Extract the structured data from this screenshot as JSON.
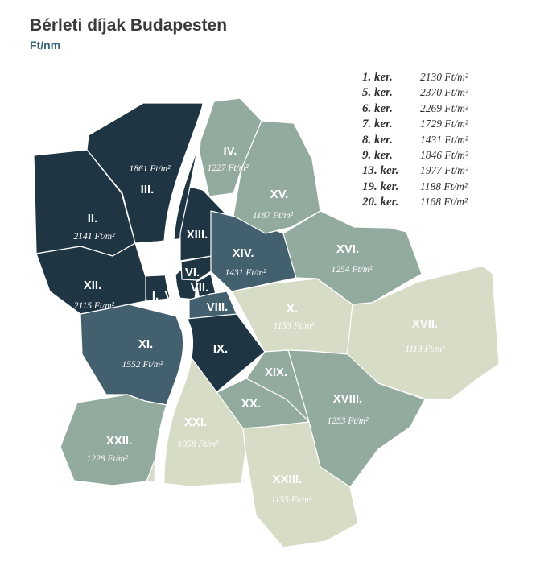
{
  "title": "Bérleti díjak Budapesten",
  "subtitle": "Ft/nm",
  "colors": {
    "very_dark": "#1f3543",
    "dark": "#43606f",
    "medium": "#93aa9f",
    "light": "#d6dcc5",
    "river": "#ffffff"
  },
  "legend": [
    {
      "name": "1. ker.",
      "value": "2130 Ft/m²"
    },
    {
      "name": "5. ker.",
      "value": "2370 Ft/m²"
    },
    {
      "name": "6. ker.",
      "value": "2269 Ft/m²"
    },
    {
      "name": "7. ker.",
      "value": "1729 Ft/m²"
    },
    {
      "name": "8. ker.",
      "value": "1431 Ft/m²"
    },
    {
      "name": "9. ker.",
      "value": "1846 Ft/m²"
    },
    {
      "name": "13. ker.",
      "value": "1977 Ft/m²"
    },
    {
      "name": "19. ker.",
      "value": "1188 Ft/m²"
    },
    {
      "name": "20. ker.",
      "value": "1168 Ft/m²"
    }
  ],
  "districts": [
    {
      "id": "I",
      "label": "I.",
      "value": "",
      "rent": 2130,
      "color": "very_dark"
    },
    {
      "id": "II",
      "label": "II.",
      "value": "2141 Ft/m²",
      "rent": 2141,
      "color": "very_dark"
    },
    {
      "id": "III",
      "label": "III.",
      "value": "1861 Ft/m²",
      "rent": 1861,
      "color": "very_dark"
    },
    {
      "id": "IV",
      "label": "IV.",
      "value": "1227 Ft/m²",
      "rent": 1227,
      "color": "medium"
    },
    {
      "id": "V",
      "label": "V.",
      "value": "",
      "rent": 2370,
      "color": "very_dark"
    },
    {
      "id": "VI",
      "label": "VI.",
      "value": "",
      "rent": 2269,
      "color": "very_dark"
    },
    {
      "id": "VII",
      "label": "VII.",
      "value": "",
      "rent": 1729,
      "color": "very_dark"
    },
    {
      "id": "VIII",
      "label": "VIII.",
      "value": "",
      "rent": 1431,
      "color": "dark"
    },
    {
      "id": "IX",
      "label": "IX.",
      "value": "",
      "rent": 1846,
      "color": "very_dark"
    },
    {
      "id": "X",
      "label": "X.",
      "value": "1153 Ft/m²",
      "rent": 1153,
      "color": "light"
    },
    {
      "id": "XI",
      "label": "XI.",
      "value": "1552 Ft/m²",
      "rent": 1552,
      "color": "dark"
    },
    {
      "id": "XII",
      "label": "XII.",
      "value": "2115 Ft/m²",
      "rent": 2115,
      "color": "very_dark"
    },
    {
      "id": "XIII",
      "label": "XIII.",
      "value": "",
      "rent": 1977,
      "color": "very_dark"
    },
    {
      "id": "XIV",
      "label": "XIV.",
      "value": "1431 Ft/m²",
      "rent": 1431,
      "color": "dark"
    },
    {
      "id": "XV",
      "label": "XV.",
      "value": "1187 Ft/m²",
      "rent": 1187,
      "color": "medium"
    },
    {
      "id": "XVI",
      "label": "XVI.",
      "value": "1254 Ft/m²",
      "rent": 1254,
      "color": "medium"
    },
    {
      "id": "XVII",
      "label": "XVII.",
      "value": "1113 Ft/m²",
      "rent": 1113,
      "color": "light"
    },
    {
      "id": "XVIII",
      "label": "XVIII.",
      "value": "1253 Ft/m²",
      "rent": 1253,
      "color": "medium"
    },
    {
      "id": "XIX",
      "label": "XIX.",
      "value": "",
      "rent": 1188,
      "color": "medium"
    },
    {
      "id": "XX",
      "label": "XX.",
      "value": "",
      "rent": 1168,
      "color": "medium"
    },
    {
      "id": "XXI",
      "label": "XXI.",
      "value": "1058 Ft/m²",
      "rent": 1058,
      "color": "light"
    },
    {
      "id": "XXII",
      "label": "XXII.",
      "value": "1228 Ft/m²",
      "rent": 1228,
      "color": "medium"
    },
    {
      "id": "XXIII",
      "label": "XXIII.",
      "value": "1155 Ft/m²",
      "rent": 1155,
      "color": "light"
    }
  ]
}
